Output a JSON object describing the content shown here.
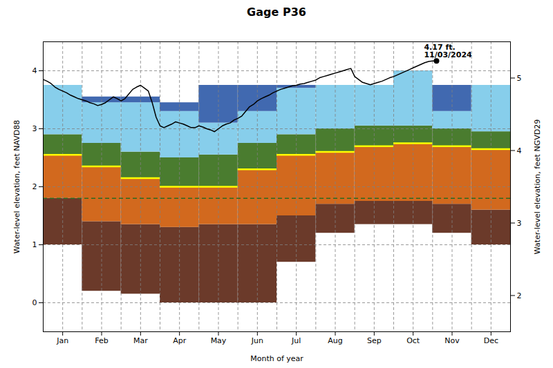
{
  "chart_data": {
    "type": "band",
    "title": "Gage P36",
    "xlabel": "Month of year",
    "ylabel": "Water-level elevation, feet NAVD88",
    "y2label": "Water-level elevation, feet NGVD29",
    "xlim": [
      0,
      12
    ],
    "xticks": [
      {
        "value": 0.5,
        "label": "Jan"
      },
      {
        "value": 1.5,
        "label": "Feb"
      },
      {
        "value": 2.5,
        "label": "Mar"
      },
      {
        "value": 3.5,
        "label": "Apr"
      },
      {
        "value": 4.5,
        "label": "May"
      },
      {
        "value": 5.5,
        "label": "Jun"
      },
      {
        "value": 6.5,
        "label": "Jul"
      },
      {
        "value": 7.5,
        "label": "Aug"
      },
      {
        "value": 8.5,
        "label": "Sep"
      },
      {
        "value": 9.5,
        "label": "Oct"
      },
      {
        "value": 10.5,
        "label": "Nov"
      },
      {
        "value": 11.5,
        "label": "Dec"
      }
    ],
    "ylim": [
      -0.5,
      4.5
    ],
    "yticks": [
      0,
      1,
      2,
      3,
      4
    ],
    "y2lim": [
      1.5,
      5.5
    ],
    "y2ticks": [
      2,
      3,
      4,
      5
    ],
    "grid": true,
    "levels": [
      {
        "values": [
          1.0,
          0.2,
          0.15,
          0.0,
          0.0,
          0.0,
          0.7,
          1.2,
          1.35,
          1.35,
          1.2,
          1.0
        ]
      },
      {
        "values": [
          1.8,
          1.4,
          1.35,
          1.3,
          1.35,
          1.35,
          1.5,
          1.7,
          1.75,
          1.75,
          1.7,
          1.6
        ],
        "color": "#6b3a2a"
      },
      {
        "values": [
          2.55,
          2.35,
          2.15,
          2.0,
          2.0,
          2.3,
          2.55,
          2.6,
          2.7,
          2.75,
          2.7,
          2.65
        ],
        "color": "#d2691e",
        "line_color": "#ffff00"
      },
      {
        "values": [
          2.9,
          2.75,
          2.6,
          2.5,
          2.55,
          2.75,
          2.9,
          3.0,
          3.05,
          3.05,
          3.0,
          2.95
        ],
        "color": "#4a7c2f"
      },
      {
        "values": [
          3.75,
          3.45,
          3.45,
          3.3,
          3.1,
          3.3,
          3.7,
          3.75,
          3.75,
          4.0,
          3.3,
          3.75
        ],
        "color": "#87ceeb"
      },
      {
        "values": [
          3.75,
          3.55,
          3.55,
          3.45,
          3.75,
          3.75,
          3.75,
          3.75,
          3.75,
          4.0,
          3.75,
          3.75
        ],
        "color": "#4169b0"
      }
    ],
    "reference_lines": [
      {
        "y": 1.8,
        "color": "#2d6a1f",
        "line_style": "dashed"
      }
    ],
    "series": [
      {
        "type": "line",
        "color": "black",
        "x": [
          0.0,
          0.1,
          0.2,
          0.3,
          0.4,
          0.5,
          0.6,
          0.7,
          0.8,
          0.9,
          1.0,
          1.1,
          1.2,
          1.3,
          1.4,
          1.5,
          1.6,
          1.7,
          1.8,
          1.9,
          2.0,
          2.1,
          2.2,
          2.3,
          2.4,
          2.5,
          2.6,
          2.7,
          2.8,
          2.9,
          3.0,
          3.1,
          3.2,
          3.3,
          3.4,
          3.5,
          3.6,
          3.7,
          3.8,
          3.9,
          4.0,
          4.1,
          4.2,
          4.3,
          4.4,
          4.5,
          4.6,
          4.7,
          4.8,
          4.9,
          5.0,
          5.1,
          5.2,
          5.3,
          5.4,
          5.5,
          5.6,
          5.7,
          5.8,
          5.9,
          6.0,
          6.1,
          6.2,
          6.3,
          6.4,
          6.5,
          6.6,
          6.7,
          6.8,
          6.9,
          7.0,
          7.1,
          7.2,
          7.3,
          7.4,
          7.5,
          7.6,
          7.7,
          7.8,
          7.9,
          8.0,
          8.1,
          8.2,
          8.3,
          8.4,
          8.5,
          8.6,
          8.7,
          8.8,
          8.9,
          9.0,
          9.1,
          9.2,
          9.3,
          9.4,
          9.5,
          9.6,
          9.7,
          9.8,
          9.9,
          10.0,
          10.1
        ],
        "values": [
          3.85,
          3.82,
          3.78,
          3.72,
          3.68,
          3.65,
          3.62,
          3.58,
          3.55,
          3.52,
          3.5,
          3.48,
          3.45,
          3.43,
          3.4,
          3.42,
          3.45,
          3.5,
          3.55,
          3.52,
          3.48,
          3.52,
          3.6,
          3.68,
          3.72,
          3.75,
          3.7,
          3.65,
          3.45,
          3.2,
          3.05,
          3.02,
          3.05,
          3.08,
          3.12,
          3.1,
          3.08,
          3.05,
          3.02,
          3.02,
          3.05,
          3.03,
          3.0,
          2.98,
          2.95,
          3.0,
          3.05,
          3.08,
          3.1,
          3.15,
          3.18,
          3.22,
          3.3,
          3.38,
          3.42,
          3.48,
          3.52,
          3.55,
          3.58,
          3.62,
          3.65,
          3.68,
          3.7,
          3.72,
          3.74,
          3.75,
          3.77,
          3.78,
          3.8,
          3.82,
          3.84,
          3.88,
          3.9,
          3.92,
          3.94,
          3.96,
          3.98,
          4.0,
          4.02,
          4.04,
          3.9,
          3.85,
          3.8,
          3.78,
          3.76,
          3.78,
          3.8,
          3.82,
          3.85,
          3.88,
          3.9,
          3.93,
          3.96,
          3.99,
          4.02,
          4.05,
          4.08,
          4.11,
          4.14,
          4.16,
          4.17,
          4.17
        ]
      }
    ],
    "points": [
      {
        "x": 10.1,
        "y": 4.17,
        "label": "4.17 ft.\n11/03/2024",
        "color": "black"
      }
    ]
  }
}
